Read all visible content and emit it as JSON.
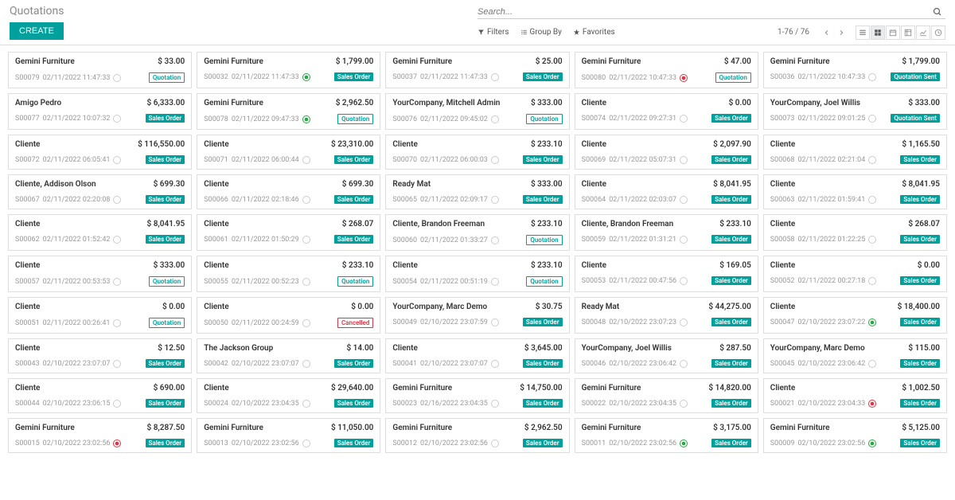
{
  "header": {
    "title": "Quotations",
    "create_label": "CREATE",
    "search_placeholder": "Search..."
  },
  "toolbar": {
    "filters": "Filters",
    "group_by": "Group By",
    "favorites": "Favorites",
    "pager": "1-76 / 76"
  },
  "colors": {
    "primary": "#00a09d",
    "danger": "#dc3545",
    "success": "#28a745",
    "text_muted": "#999999",
    "border": "#dddddd"
  },
  "badges": {
    "sales": "Sales Order",
    "quotation": "Quotation",
    "sent": "Quotation Sent",
    "cancelled": "Cancelled"
  },
  "cards": [
    {
      "customer": "Gemini Furniture",
      "amount": "$ 33.00",
      "ref": "S00079",
      "date": "02/11/2022 11:47:33",
      "status": "",
      "badge": "quotation"
    },
    {
      "customer": "Gemini Furniture",
      "amount": "$ 1,799.00",
      "ref": "S00032",
      "date": "02/11/2022 11:47:33",
      "status": "green",
      "badge": "sales"
    },
    {
      "customer": "Gemini Furniture",
      "amount": "$ 25.00",
      "ref": "S00037",
      "date": "02/11/2022 11:47:33",
      "status": "",
      "badge": "sales"
    },
    {
      "customer": "Gemini Furniture",
      "amount": "$ 47.00",
      "ref": "S00080",
      "date": "02/11/2022 10:47:33",
      "status": "red",
      "badge": "quotation"
    },
    {
      "customer": "Gemini Furniture",
      "amount": "$ 1,799.00",
      "ref": "S00036",
      "date": "02/11/2022 10:47:33",
      "status": "",
      "badge": "sent"
    },
    {
      "customer": "Amigo Pedro",
      "amount": "$ 6,333.00",
      "ref": "S00077",
      "date": "02/11/2022 10:07:32",
      "status": "",
      "badge": "sales"
    },
    {
      "customer": "Gemini Furniture",
      "amount": "$ 2,962.50",
      "ref": "S00078",
      "date": "02/11/2022 09:47:33",
      "status": "green",
      "badge": "quotation"
    },
    {
      "customer": "YourCompany, Mitchell Admin",
      "amount": "$ 333.00",
      "ref": "S00076",
      "date": "02/11/2022 09:45:02",
      "status": "",
      "badge": "quotation"
    },
    {
      "customer": "Cliente",
      "amount": "$ 0.00",
      "ref": "S00074",
      "date": "02/11/2022 09:27:31",
      "status": "",
      "badge": "sales"
    },
    {
      "customer": "YourCompany, Joel Willis",
      "amount": "$ 333.00",
      "ref": "S00073",
      "date": "02/11/2022 09:01:25",
      "status": "",
      "badge": "sent"
    },
    {
      "customer": "Cliente",
      "amount": "$ 116,550.00",
      "ref": "S00072",
      "date": "02/11/2022 06:05:41",
      "status": "",
      "badge": "sales"
    },
    {
      "customer": "Cliente",
      "amount": "$ 23,310.00",
      "ref": "S00071",
      "date": "02/11/2022 06:00:44",
      "status": "",
      "badge": "sales"
    },
    {
      "customer": "Cliente",
      "amount": "$ 233.10",
      "ref": "S00070",
      "date": "02/11/2022 06:00:03",
      "status": "",
      "badge": "sales"
    },
    {
      "customer": "Cliente",
      "amount": "$ 2,097.90",
      "ref": "S00069",
      "date": "02/11/2022 05:07:31",
      "status": "",
      "badge": "sales"
    },
    {
      "customer": "Cliente",
      "amount": "$ 1,165.50",
      "ref": "S00068",
      "date": "02/11/2022 02:21:04",
      "status": "",
      "badge": "sales"
    },
    {
      "customer": "Cliente, Addison Olson",
      "amount": "$ 699.30",
      "ref": "S00067",
      "date": "02/11/2022 02:20:08",
      "status": "",
      "badge": "sales"
    },
    {
      "customer": "Cliente",
      "amount": "$ 699.30",
      "ref": "S00066",
      "date": "02/11/2022 02:18:46",
      "status": "",
      "badge": "sales"
    },
    {
      "customer": "Ready Mat",
      "amount": "$ 333.00",
      "ref": "S00065",
      "date": "02/11/2022 02:09:17",
      "status": "",
      "badge": "sales"
    },
    {
      "customer": "Cliente",
      "amount": "$ 8,041.95",
      "ref": "S00064",
      "date": "02/11/2022 02:03:07",
      "status": "",
      "badge": "sales"
    },
    {
      "customer": "Cliente",
      "amount": "$ 8,041.95",
      "ref": "S00063",
      "date": "02/11/2022 01:59:41",
      "status": "",
      "badge": "sales"
    },
    {
      "customer": "Cliente",
      "amount": "$ 8,041.95",
      "ref": "S00062",
      "date": "02/11/2022 01:52:42",
      "status": "",
      "badge": "sales"
    },
    {
      "customer": "Cliente",
      "amount": "$ 268.07",
      "ref": "S00061",
      "date": "02/11/2022 01:50:29",
      "status": "",
      "badge": "sales"
    },
    {
      "customer": "Cliente, Brandon Freeman",
      "amount": "$ 233.10",
      "ref": "S00060",
      "date": "02/11/2022 01:33:27",
      "status": "",
      "badge": "quotation"
    },
    {
      "customer": "Cliente, Brandon Freeman",
      "amount": "$ 233.10",
      "ref": "S00059",
      "date": "02/11/2022 01:31:21",
      "status": "",
      "badge": "sales"
    },
    {
      "customer": "Cliente",
      "amount": "$ 268.07",
      "ref": "S00058",
      "date": "02/11/2022 01:22:25",
      "status": "",
      "badge": "sales"
    },
    {
      "customer": "Cliente",
      "amount": "$ 333.00",
      "ref": "S00057",
      "date": "02/11/2022 00:53:53",
      "status": "",
      "badge": "quotation"
    },
    {
      "customer": "Cliente",
      "amount": "$ 233.10",
      "ref": "S00055",
      "date": "02/11/2022 00:52:23",
      "status": "",
      "badge": "quotation"
    },
    {
      "customer": "Cliente",
      "amount": "$ 233.10",
      "ref": "S00054",
      "date": "02/11/2022 00:51:19",
      "status": "",
      "badge": "quotation"
    },
    {
      "customer": "Cliente",
      "amount": "$ 169.05",
      "ref": "S00053",
      "date": "02/11/2022 00:47:56",
      "status": "",
      "badge": "sales"
    },
    {
      "customer": "Cliente",
      "amount": "$ 0.00",
      "ref": "S00052",
      "date": "02/11/2022 00:27:18",
      "status": "",
      "badge": "sales"
    },
    {
      "customer": "Cliente",
      "amount": "$ 0.00",
      "ref": "S00051",
      "date": "02/11/2022 00:26:41",
      "status": "",
      "badge": "quotation"
    },
    {
      "customer": "Cliente",
      "amount": "$ 0.00",
      "ref": "S00050",
      "date": "02/11/2022 00:24:59",
      "status": "",
      "badge": "cancelled"
    },
    {
      "customer": "YourCompany, Marc Demo",
      "amount": "$ 30.75",
      "ref": "S00049",
      "date": "02/10/2022 23:07:59",
      "status": "",
      "badge": "sales"
    },
    {
      "customer": "Ready Mat",
      "amount": "$ 44,275.00",
      "ref": "S00048",
      "date": "02/10/2022 23:07:23",
      "status": "",
      "badge": "sales"
    },
    {
      "customer": "Cliente",
      "amount": "$ 18,400.00",
      "ref": "S00047",
      "date": "02/10/2022 23:07:22",
      "status": "green",
      "badge": "sales"
    },
    {
      "customer": "Cliente",
      "amount": "$ 12.50",
      "ref": "S00043",
      "date": "02/10/2022 23:07:07",
      "status": "",
      "badge": "sales"
    },
    {
      "customer": "The Jackson Group",
      "amount": "$ 14.00",
      "ref": "S00042",
      "date": "02/10/2022 23:07:07",
      "status": "",
      "badge": "sales"
    },
    {
      "customer": "Cliente",
      "amount": "$ 3,645.00",
      "ref": "S00041",
      "date": "02/10/2022 23:07:07",
      "status": "",
      "badge": "sales"
    },
    {
      "customer": "YourCompany, Joel Willis",
      "amount": "$ 287.50",
      "ref": "S00046",
      "date": "02/10/2022 23:06:42",
      "status": "",
      "badge": "sales"
    },
    {
      "customer": "YourCompany, Marc Demo",
      "amount": "$ 115.00",
      "ref": "S00045",
      "date": "02/10/2022 23:06:42",
      "status": "",
      "badge": "sales"
    },
    {
      "customer": "Cliente",
      "amount": "$ 690.00",
      "ref": "S00044",
      "date": "02/10/2022 23:06:15",
      "status": "",
      "badge": "sales"
    },
    {
      "customer": "Cliente",
      "amount": "$ 29,640.00",
      "ref": "S00024",
      "date": "02/10/2022 23:04:35",
      "status": "",
      "badge": "sales"
    },
    {
      "customer": "Gemini Furniture",
      "amount": "$ 14,750.00",
      "ref": "S00023",
      "date": "02/16/2022 23:04:35",
      "status": "",
      "badge": "sales"
    },
    {
      "customer": "Gemini Furniture",
      "amount": "$ 14,820.00",
      "ref": "S00022",
      "date": "02/10/2022 23:04:35",
      "status": "",
      "badge": "sales"
    },
    {
      "customer": "Cliente",
      "amount": "$ 1,002.50",
      "ref": "S00021",
      "date": "02/10/2022 23:04:33",
      "status": "red",
      "badge": "sales"
    },
    {
      "customer": "Gemini Furniture",
      "amount": "$ 8,287.50",
      "ref": "S00015",
      "date": "02/10/2022 23:02:56",
      "status": "red",
      "badge": "sales"
    },
    {
      "customer": "Gemini Furniture",
      "amount": "$ 11,050.00",
      "ref": "S00013",
      "date": "02/10/2022 23:02:56",
      "status": "",
      "badge": "sales"
    },
    {
      "customer": "Gemini Furniture",
      "amount": "$ 2,962.50",
      "ref": "S00012",
      "date": "02/10/2022 23:02:56",
      "status": "",
      "badge": "sales"
    },
    {
      "customer": "Gemini Furniture",
      "amount": "$ 3,175.00",
      "ref": "S00011",
      "date": "02/10/2022 23:02:56",
      "status": "green",
      "badge": "sales"
    },
    {
      "customer": "Gemini Furniture",
      "amount": "$ 5,125.00",
      "ref": "S00009",
      "date": "02/10/2022 23:02:56",
      "status": "green",
      "badge": "sales"
    }
  ]
}
